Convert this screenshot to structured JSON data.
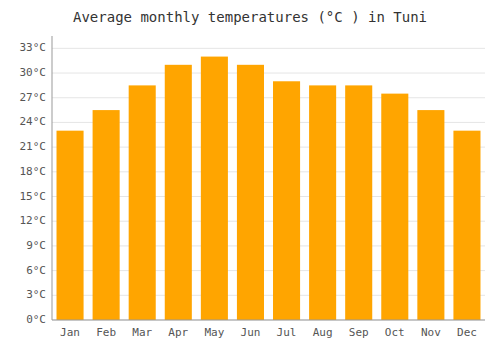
{
  "chart_data": {
    "type": "bar",
    "title": "Average monthly temperatures (°C ) in Tuni",
    "categories": [
      "Jan",
      "Feb",
      "Mar",
      "Apr",
      "May",
      "Jun",
      "Jul",
      "Aug",
      "Sep",
      "Oct",
      "Nov",
      "Dec"
    ],
    "values": [
      23,
      25.5,
      28.5,
      31,
      32,
      31,
      29,
      28.5,
      28.5,
      27.5,
      25.5,
      23
    ],
    "color": "#FFA500",
    "ylim": [
      0,
      34.5
    ],
    "yticks": [
      {
        "value": 0,
        "label": "0°C"
      },
      {
        "value": 3,
        "label": "3°C"
      },
      {
        "value": 6,
        "label": "6°C"
      },
      {
        "value": 9,
        "label": "9°C"
      },
      {
        "value": 12,
        "label": "12°C"
      },
      {
        "value": 15,
        "label": "15°C"
      },
      {
        "value": 18,
        "label": "18°C"
      },
      {
        "value": 21,
        "label": "21°C"
      },
      {
        "value": 24,
        "label": "24°C"
      },
      {
        "value": 27,
        "label": "27°C"
      },
      {
        "value": 30,
        "label": "30°C"
      },
      {
        "value": 33,
        "label": "33°C"
      }
    ],
    "grid": true
  }
}
